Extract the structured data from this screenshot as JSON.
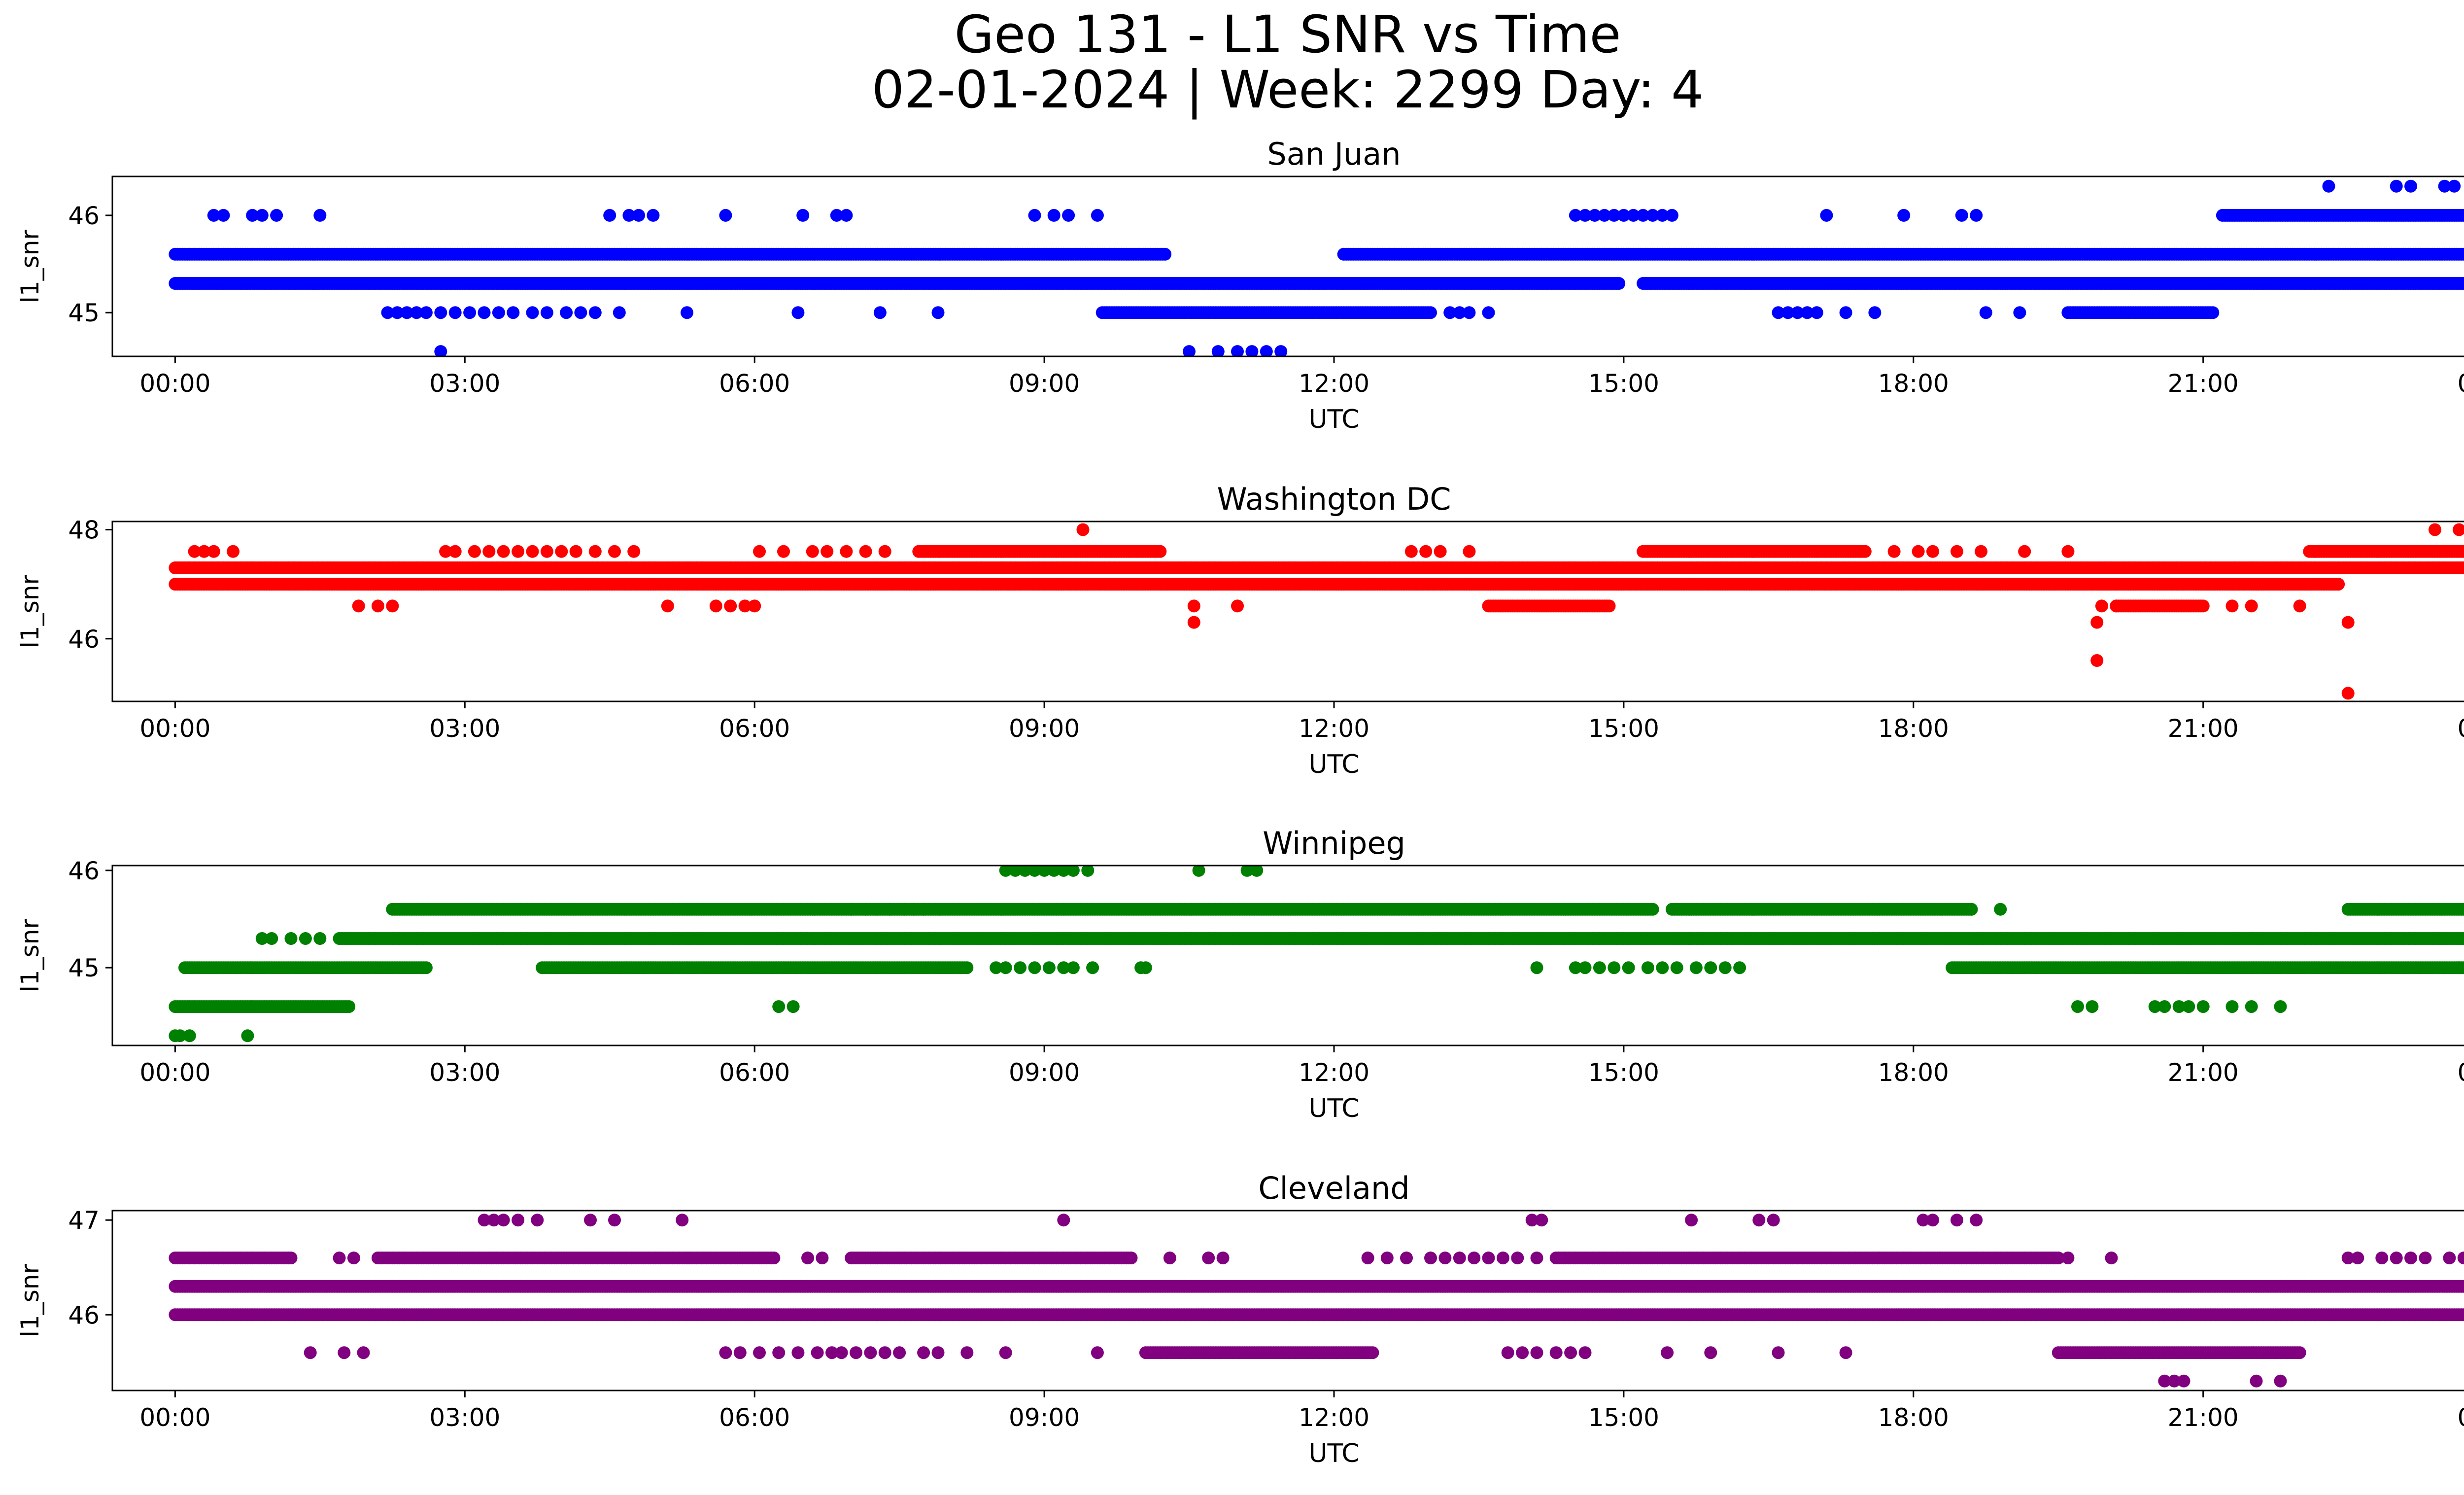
{
  "title_line1": "Geo 131 - L1 SNR vs Time",
  "title_line2": "02-01-2024 | Week: 2299 Day: 4",
  "chart_data": [
    {
      "type": "scatter",
      "title": "San Juan",
      "xlabel": "UTC",
      "ylabel": "l1_snr",
      "color": "#0000ff",
      "x_ticks": [
        "00:00",
        "03:00",
        "06:00",
        "09:00",
        "12:00",
        "15:00",
        "18:00",
        "21:00",
        "00:00"
      ],
      "y_ticks": [
        45,
        46
      ],
      "xlim": [
        -0.65,
        24.65
      ],
      "ylim": [
        44.55,
        46.4
      ],
      "bands": [
        {
          "y": 45.3,
          "ranges": [
            [
              0,
              14.95
            ],
            [
              15.2,
              24
            ]
          ]
        },
        {
          "y": 45.6,
          "ranges": [
            [
              0,
              10.25
            ],
            [
              12.1,
              24
            ]
          ]
        },
        {
          "y": 46.0,
          "ranges": [
            [
              21.2,
              24
            ]
          ]
        },
        {
          "y": 45.0,
          "ranges": [
            [
              9.6,
              13.0
            ],
            [
              19.6,
              21.1
            ]
          ]
        }
      ],
      "points": [
        {
          "y": 46.0,
          "x": [
            0.4,
            0.5,
            0.8,
            0.9,
            1.05,
            1.5,
            4.5,
            4.7,
            4.8,
            4.95,
            5.7,
            6.5,
            6.85,
            6.95,
            8.9,
            9.1,
            9.25,
            9.55,
            14.5,
            14.6,
            14.7,
            14.8,
            14.9,
            15.0,
            15.1,
            15.2,
            15.3,
            15.4,
            15.5,
            17.1,
            17.9,
            18.5,
            18.65
          ]
        },
        {
          "y": 45.0,
          "x": [
            2.2,
            2.3,
            2.4,
            2.5,
            2.6,
            2.75,
            2.9,
            3.05,
            3.2,
            3.35,
            3.5,
            3.7,
            3.85,
            4.05,
            4.2,
            4.35,
            4.6,
            5.3,
            6.45,
            7.3,
            7.9,
            13.2,
            13.3,
            13.4,
            13.6,
            16.6,
            16.7,
            16.8,
            16.9,
            17.0,
            17.3,
            17.6,
            18.75,
            19.1
          ]
        },
        {
          "y": 44.6,
          "x": [
            2.75,
            10.5,
            10.8,
            11.0,
            11.15,
            11.3,
            11.45
          ]
        },
        {
          "y": 46.3,
          "x": [
            22.3,
            23.0,
            23.15,
            23.5,
            23.6
          ]
        }
      ]
    },
    {
      "type": "scatter",
      "title": "Washington DC",
      "xlabel": "UTC",
      "ylabel": "l1_snr",
      "color": "#ff0000",
      "x_ticks": [
        "00:00",
        "03:00",
        "06:00",
        "09:00",
        "12:00",
        "15:00",
        "18:00",
        "21:00",
        "00:00"
      ],
      "y_ticks": [
        46,
        48
      ],
      "xlim": [
        -0.65,
        24.65
      ],
      "ylim": [
        44.85,
        48.15
      ],
      "bands": [
        {
          "y": 47.3,
          "ranges": [
            [
              0,
              24
            ]
          ]
        },
        {
          "y": 47.0,
          "ranges": [
            [
              0,
              22.4
            ]
          ]
        },
        {
          "y": 47.6,
          "ranges": [
            [
              7.7,
              10.2
            ],
            [
              15.2,
              17.5
            ],
            [
              22.1,
              24
            ]
          ]
        },
        {
          "y": 46.6,
          "ranges": [
            [
              13.6,
              14.85
            ],
            [
              20.1,
              21.0
            ]
          ]
        }
      ],
      "points": [
        {
          "y": 47.6,
          "x": [
            0.2,
            0.3,
            0.4,
            0.6,
            2.8,
            2.9,
            3.1,
            3.25,
            3.4,
            3.55,
            3.7,
            3.85,
            4.0,
            4.15,
            4.35,
            4.55,
            4.75,
            6.05,
            6.3,
            6.6,
            6.75,
            6.95,
            7.15,
            7.35,
            12.8,
            12.95,
            13.1,
            13.4,
            17.8,
            18.05,
            18.2,
            18.45,
            18.7,
            19.15,
            19.6
          ]
        },
        {
          "y": 46.6,
          "x": [
            1.9,
            2.1,
            2.25,
            5.1,
            5.6,
            5.75,
            5.9,
            6.0,
            10.55,
            11.0,
            19.95,
            20.1,
            21.3,
            21.5,
            22.0
          ]
        },
        {
          "y": 48.0,
          "x": [
            9.4,
            23.4,
            23.65
          ]
        },
        {
          "y": 46.3,
          "x": [
            10.55,
            19.9,
            22.5
          ]
        },
        {
          "y": 45.6,
          "x": [
            19.9
          ]
        },
        {
          "y": 45.0,
          "x": [
            22.5
          ]
        }
      ]
    },
    {
      "type": "scatter",
      "title": "Winnipeg",
      "xlabel": "UTC",
      "ylabel": "l1_snr",
      "color": "#008000",
      "x_ticks": [
        "00:00",
        "03:00",
        "06:00",
        "09:00",
        "12:00",
        "15:00",
        "18:00",
        "21:00",
        "00:00"
      ],
      "y_ticks": [
        45,
        46
      ],
      "xlim": [
        -0.65,
        24.65
      ],
      "ylim": [
        44.2,
        46.05
      ],
      "bands": [
        {
          "y": 45.3,
          "ranges": [
            [
              1.7,
              24
            ]
          ]
        },
        {
          "y": 45.0,
          "ranges": [
            [
              0.1,
              2.6
            ],
            [
              3.8,
              8.2
            ],
            [
              18.4,
              24
            ]
          ]
        },
        {
          "y": 45.6,
          "ranges": [
            [
              2.25,
              15.3
            ],
            [
              15.5,
              18.6
            ],
            [
              22.5,
              24
            ]
          ]
        },
        {
          "y": 44.6,
          "ranges": [
            [
              0,
              1.8
            ]
          ]
        }
      ],
      "points": [
        {
          "y": 45.3,
          "x": [
            0.9,
            1.0,
            1.2,
            1.35,
            1.5
          ]
        },
        {
          "y": 45.0,
          "x": [
            8.5,
            8.6,
            8.75,
            8.9,
            9.05,
            9.2,
            9.3,
            9.5,
            10.0,
            10.05,
            14.1,
            14.5,
            14.6,
            14.75,
            14.9,
            15.05,
            15.25,
            15.4,
            15.55,
            15.75,
            15.9,
            16.05,
            16.2,
            23.65,
            23.85
          ]
        },
        {
          "y": 46.0,
          "x": [
            8.6,
            8.7,
            8.8,
            8.9,
            9.0,
            9.1,
            9.2,
            9.3,
            9.45,
            10.6,
            11.1,
            11.2
          ]
        },
        {
          "y": 45.6,
          "x": [
            7.0,
            7.15,
            7.4,
            7.55,
            7.65,
            7.75,
            18.6,
            18.9
          ]
        },
        {
          "y": 44.6,
          "x": [
            6.25,
            6.4,
            19.7,
            19.85,
            20.5,
            20.6,
            20.75,
            20.85,
            21.0,
            21.3,
            21.5,
            21.8
          ]
        },
        {
          "y": 44.3,
          "x": [
            0.0,
            0.05,
            0.15,
            0.75
          ]
        }
      ]
    },
    {
      "type": "scatter",
      "title": "Cleveland",
      "xlabel": "UTC",
      "ylabel": "l1_snr",
      "color": "#800080",
      "x_ticks": [
        "00:00",
        "03:00",
        "06:00",
        "09:00",
        "12:00",
        "15:00",
        "18:00",
        "21:00",
        "00:00"
      ],
      "y_ticks": [
        46,
        47
      ],
      "xlim": [
        -0.65,
        24.65
      ],
      "ylim": [
        45.2,
        47.1
      ],
      "bands": [
        {
          "y": 46.3,
          "ranges": [
            [
              0,
              24
            ]
          ]
        },
        {
          "y": 46.0,
          "ranges": [
            [
              0,
              24
            ]
          ]
        },
        {
          "y": 46.6,
          "ranges": [
            [
              0,
              1.2
            ],
            [
              2.1,
              6.2
            ],
            [
              7.0,
              9.9
            ],
            [
              14.3,
              19.5
            ]
          ]
        },
        {
          "y": 45.6,
          "ranges": [
            [
              10.05,
              12.4
            ],
            [
              19.5,
              22.0
            ]
          ]
        }
      ],
      "points": [
        {
          "y": 46.6,
          "x": [
            1.7,
            1.85,
            6.55,
            6.7,
            10.3,
            10.7,
            10.85,
            12.35,
            12.55,
            12.75,
            13.0,
            13.15,
            13.3,
            13.45,
            13.6,
            13.75,
            13.9,
            14.1,
            19.6,
            20.05,
            22.5,
            22.6,
            22.85,
            23.0,
            23.15,
            23.3,
            23.55,
            23.7
          ]
        },
        {
          "y": 47.0,
          "x": [
            3.2,
            3.3,
            3.4,
            3.55,
            3.75,
            4.3,
            4.55,
            5.25,
            9.2,
            14.05,
            14.15,
            15.7,
            16.4,
            16.55,
            18.1,
            18.2,
            18.45,
            18.65
          ]
        },
        {
          "y": 45.6,
          "x": [
            1.4,
            1.75,
            1.95,
            5.7,
            5.85,
            6.05,
            6.25,
            6.45,
            6.65,
            6.8,
            6.9,
            7.05,
            7.2,
            7.35,
            7.5,
            7.75,
            7.9,
            8.2,
            8.6,
            9.55,
            13.8,
            13.95,
            14.1,
            14.3,
            14.45,
            14.6,
            15.45,
            15.9,
            16.6,
            17.3
          ]
        },
        {
          "y": 45.3,
          "x": [
            20.6,
            20.7,
            20.8,
            21.55,
            21.8
          ]
        }
      ]
    }
  ]
}
